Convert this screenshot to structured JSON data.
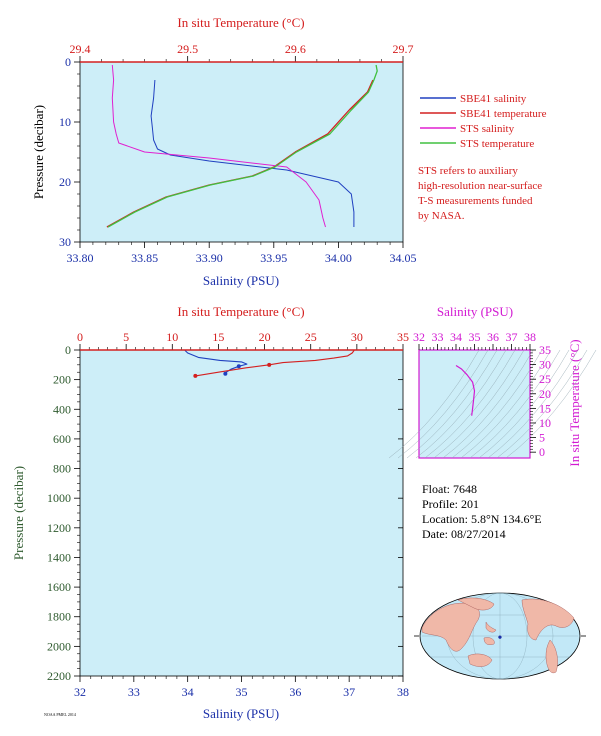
{
  "colors": {
    "plot_bg": "#cdeef8",
    "salinity_axis": "#1a2fa8",
    "temperature_axis": "#d41c1c",
    "ts_axis": "#d21ad2",
    "pressure_axis": "#2e5a2e",
    "sbe41_salinity": "#2040c0",
    "sbe41_temperature": "#d42020",
    "sts_salinity": "#e020d0",
    "sts_temperature": "#40c040"
  },
  "top_chart": {
    "temp_title": "In situ Temperature (°C)",
    "sal_title": "Salinity (PSU)",
    "pres_title": "Pressure (decibar)",
    "temp_ticks": [
      "29.4",
      "29.5",
      "29.6",
      "29.7"
    ],
    "sal_ticks": [
      "33.80",
      "33.85",
      "33.90",
      "33.95",
      "34.00",
      "34.05"
    ],
    "pres_ticks": [
      "0",
      "10",
      "20",
      "30"
    ]
  },
  "legend": {
    "items": [
      {
        "label": "SBE41 salinity",
        "color": "#2040c0"
      },
      {
        "label": "SBE41 temperature",
        "color": "#d42020"
      },
      {
        "label": "STS salinity",
        "color": "#e020d0"
      },
      {
        "label": "STS temperature",
        "color": "#40c040"
      }
    ],
    "note_lines": [
      "STS refers to auxiliary",
      "high-resolution near-surface",
      "T-S measurements funded",
      "by NASA."
    ]
  },
  "bottom_chart": {
    "temp_title": "In situ Temperature (°C)",
    "sal_title": "Salinity (PSU)",
    "pres_title": "Pressure (decibar)",
    "temp_ticks": [
      "0",
      "5",
      "10",
      "15",
      "20",
      "25",
      "30",
      "35"
    ],
    "sal_ticks": [
      "32",
      "33",
      "34",
      "35",
      "36",
      "37",
      "38"
    ],
    "pres_ticks": [
      "0",
      "200",
      "400",
      "600",
      "800",
      "1000",
      "1200",
      "1400",
      "1600",
      "1800",
      "2000",
      "2200"
    ]
  },
  "ts_chart": {
    "sal_title": "Salinity (PSU)",
    "temp_title": "In situ Temperature (°C)",
    "sal_ticks": [
      "32",
      "33",
      "34",
      "35",
      "36",
      "37",
      "38"
    ],
    "temp_ticks": [
      "0",
      "5",
      "10",
      "15",
      "20",
      "25",
      "30",
      "35"
    ]
  },
  "float_info": {
    "lines": [
      "Float:  7648",
      "Profile:  201",
      "Location:  5.8°N  134.6°E",
      "Date:  08/27/2014"
    ]
  },
  "footer_tiny": "NOAA PMEL 2014",
  "chart_data": [
    {
      "type": "line",
      "title": "",
      "xlabel": "Salinity (PSU)",
      "x2label": "In situ Temperature (°C)",
      "ylabel": "Pressure (decibar)",
      "xlim": [
        33.8,
        34.05
      ],
      "x2lim": [
        29.4,
        29.7
      ],
      "ylim": [
        30,
        0
      ],
      "series": [
        {
          "name": "SBE41 salinity",
          "axis": "salinity",
          "x": [
            33.858,
            33.857,
            33.855,
            33.856,
            33.857,
            33.86,
            33.87,
            33.9,
            33.96,
            34.0,
            34.01,
            34.012,
            34.012
          ],
          "y": [
            3,
            6,
            9,
            11,
            13,
            14.5,
            15.5,
            16.5,
            18,
            20,
            22,
            25,
            27.5
          ]
        },
        {
          "name": "SBE41 temperature",
          "axis": "temperature",
          "x": [
            29.672,
            29.667,
            29.65,
            29.63,
            29.6,
            29.58,
            29.56,
            29.52,
            29.48,
            29.45,
            29.425
          ],
          "y": [
            3,
            5,
            8,
            12,
            15,
            17.5,
            19,
            20.5,
            22.5,
            25,
            27.5
          ]
        },
        {
          "name": "STS salinity",
          "axis": "salinity",
          "x": [
            33.825,
            33.826,
            33.825,
            33.826,
            33.828,
            33.83,
            33.85,
            33.9,
            33.96,
            33.975,
            33.985,
            33.988,
            33.99
          ],
          "y": [
            0.5,
            3,
            6,
            10,
            12,
            13.5,
            15,
            16,
            17.5,
            20,
            23,
            26,
            27.5
          ]
        },
        {
          "name": "STS temperature",
          "axis": "temperature",
          "x": [
            29.675,
            29.676,
            29.673,
            29.668,
            29.652,
            29.632,
            29.601,
            29.581,
            29.561,
            29.521,
            29.481,
            29.451,
            29.426
          ],
          "y": [
            0.5,
            1.5,
            3,
            5,
            8,
            12,
            15,
            17.5,
            19,
            20.5,
            22.5,
            25,
            27.5
          ]
        }
      ]
    },
    {
      "type": "line",
      "title": "",
      "xlabel": "Salinity (PSU)",
      "x2label": "In situ Temperature (°C)",
      "ylabel": "Pressure (decibar)",
      "xlim": [
        32,
        38
      ],
      "x2lim": [
        0,
        35
      ],
      "ylim": [
        2200,
        0
      ],
      "series": [
        {
          "name": "SBE41 salinity",
          "axis": "salinity",
          "x": [
            33.95,
            34.0,
            34.2,
            34.6,
            35.0,
            35.1,
            34.95,
            34.8,
            34.72,
            34.7
          ],
          "y": [
            3,
            20,
            50,
            70,
            80,
            95,
            110,
            130,
            150,
            160
          ]
        },
        {
          "name": "SBE41 temperature",
          "axis": "temperature",
          "x": [
            29.7,
            29.5,
            29.0,
            27.5,
            25.5,
            22.0,
            20.5,
            18.0,
            15.0,
            12.5
          ],
          "y": [
            3,
            20,
            40,
            55,
            70,
            85,
            100,
            120,
            150,
            175
          ]
        }
      ]
    },
    {
      "type": "line",
      "title": "",
      "xlabel": "Salinity (PSU)",
      "ylabel": "In situ Temperature (°C)",
      "xlim": [
        32,
        38
      ],
      "ylim": [
        -2,
        35
      ],
      "series": [
        {
          "name": "T-S",
          "x": [
            34.0,
            34.3,
            34.6,
            34.9,
            35.0,
            34.95,
            34.9,
            34.85
          ],
          "y": [
            29.7,
            28.5,
            26.5,
            24.0,
            21.0,
            18.0,
            15.0,
            12.5
          ]
        }
      ]
    }
  ]
}
